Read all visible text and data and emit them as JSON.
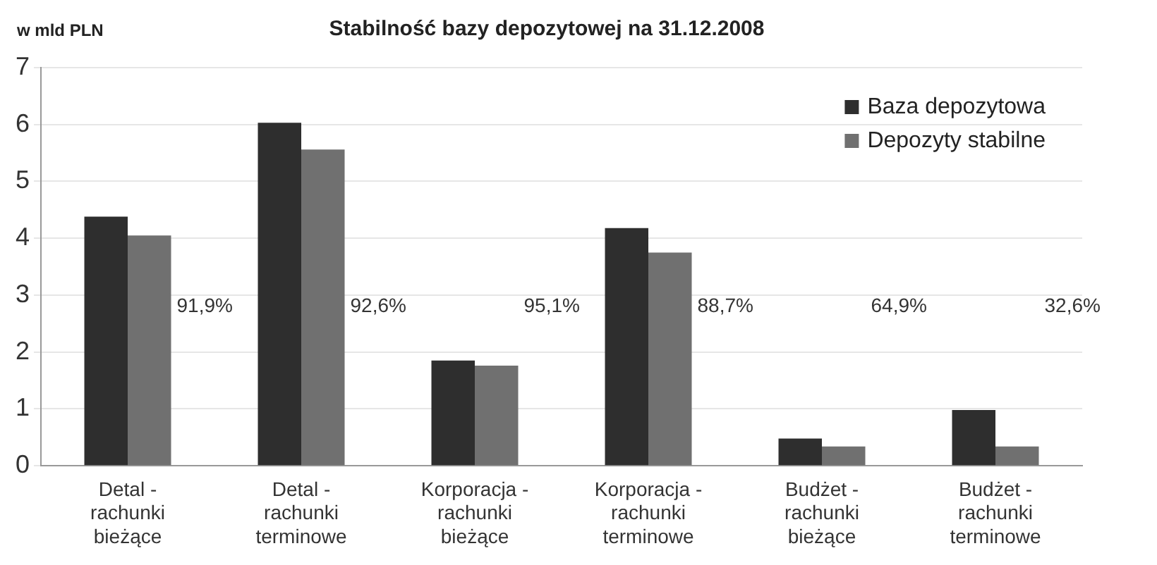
{
  "chart_data": {
    "type": "bar",
    "title": "Stabilność bazy depozytowej na 31.12.2008",
    "ylabel": "w mld PLN",
    "categories": [
      "Detal - rachunki bieżące",
      "Detal - rachunki terminowe",
      "Korporacja - rachunki bieżące",
      "Korporacja - rachunki terminowe",
      "Budżet - rachunki bieżące",
      "Budżet - rachunki terminowe"
    ],
    "series": [
      {
        "name": "Baza depozytowa",
        "color": "#2e2e2e",
        "values": [
          4.38,
          6.03,
          1.85,
          4.18,
          0.48,
          0.98
        ]
      },
      {
        "name": "Depozyty stabilne",
        "color": "#707070",
        "values": [
          4.05,
          5.56,
          1.76,
          3.75,
          0.34,
          0.34
        ]
      }
    ],
    "ylim": [
      0,
      7
    ],
    "yticks": [
      0,
      1,
      2,
      3,
      4,
      5,
      6,
      7
    ],
    "grid": "y",
    "legend": "top right",
    "annotations": [
      "91,9%",
      "92,6%",
      "95,1%",
      "88,7%",
      "64,9%",
      "32,6%"
    ]
  }
}
